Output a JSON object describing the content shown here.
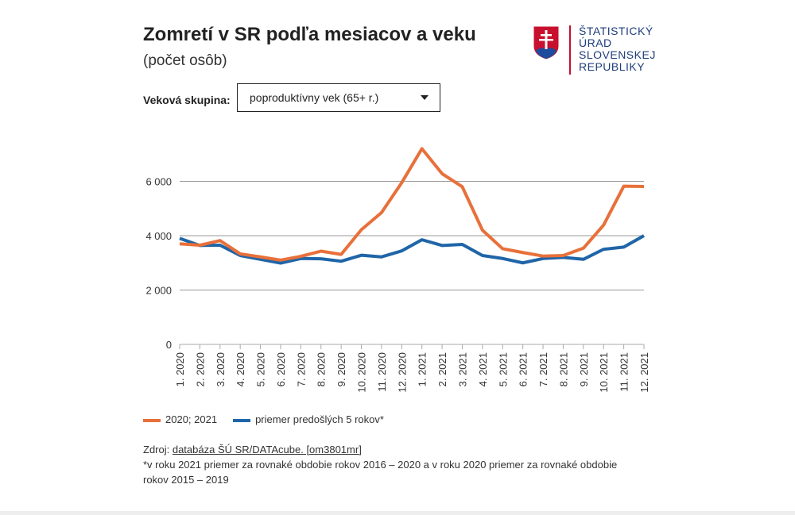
{
  "title": "Zomretí v SR podľa mesiacov a veku",
  "subtitle": "(počet osôb)",
  "logo": {
    "lines": [
      "ŠTATISTICKÝ",
      "ÚRAD",
      "SLOVENSKEJ",
      "REPUBLIKY"
    ],
    "colors": {
      "text": "#1e3d7b",
      "accent": "#c8102e"
    }
  },
  "filter": {
    "label": "Veková skupina:",
    "selected": "poproduktívny vek (65+ r.)"
  },
  "chart_data": {
    "type": "line",
    "title": "",
    "xlabel": "",
    "ylabel": "",
    "ylim": [
      0,
      7200
    ],
    "yticks": [
      0,
      2000,
      4000,
      6000
    ],
    "ytick_labels": [
      "0",
      "2 000",
      "4 000",
      "6 000"
    ],
    "grid": true,
    "legend": "bottom-left",
    "categories": [
      "1. 2020",
      "2. 2020",
      "3. 2020",
      "4. 2020",
      "5. 2020",
      "6. 2020",
      "7. 2020",
      "8. 2020",
      "9. 2020",
      "10. 2020",
      "11. 2020",
      "12. 2020",
      "1. 2021",
      "2. 2021",
      "3. 2021",
      "4. 2021",
      "5. 2021",
      "6. 2021",
      "7. 2021",
      "8. 2021",
      "9. 2021",
      "10. 2021",
      "11. 2021",
      "12. 2021"
    ],
    "series": [
      {
        "name": "2020; 2021",
        "color": "#e8703a",
        "values": [
          3700,
          3650,
          3820,
          3330,
          3220,
          3100,
          3240,
          3430,
          3310,
          4220,
          4850,
          5950,
          7200,
          6280,
          5800,
          4200,
          3520,
          3380,
          3250,
          3270,
          3540,
          4390,
          5820,
          5810
        ]
      },
      {
        "name": "priemer predošlých 5 rokov*",
        "color": "#1f65a8",
        "values": [
          3900,
          3640,
          3650,
          3270,
          3130,
          2990,
          3160,
          3150,
          3060,
          3280,
          3220,
          3440,
          3850,
          3640,
          3680,
          3270,
          3160,
          3000,
          3160,
          3200,
          3130,
          3500,
          3580,
          4000
        ]
      }
    ]
  },
  "source": {
    "prefix": "Zdroj: ",
    "link": "databáza ŠÚ SR/DATAcube. [om3801mr]",
    "note": "*v roku 2021 priemer za rovnaké obdobie rokov 2016 – 2020 a v roku 2020 priemer za rovnaké obdobie rokov 2015 – 2019"
  }
}
